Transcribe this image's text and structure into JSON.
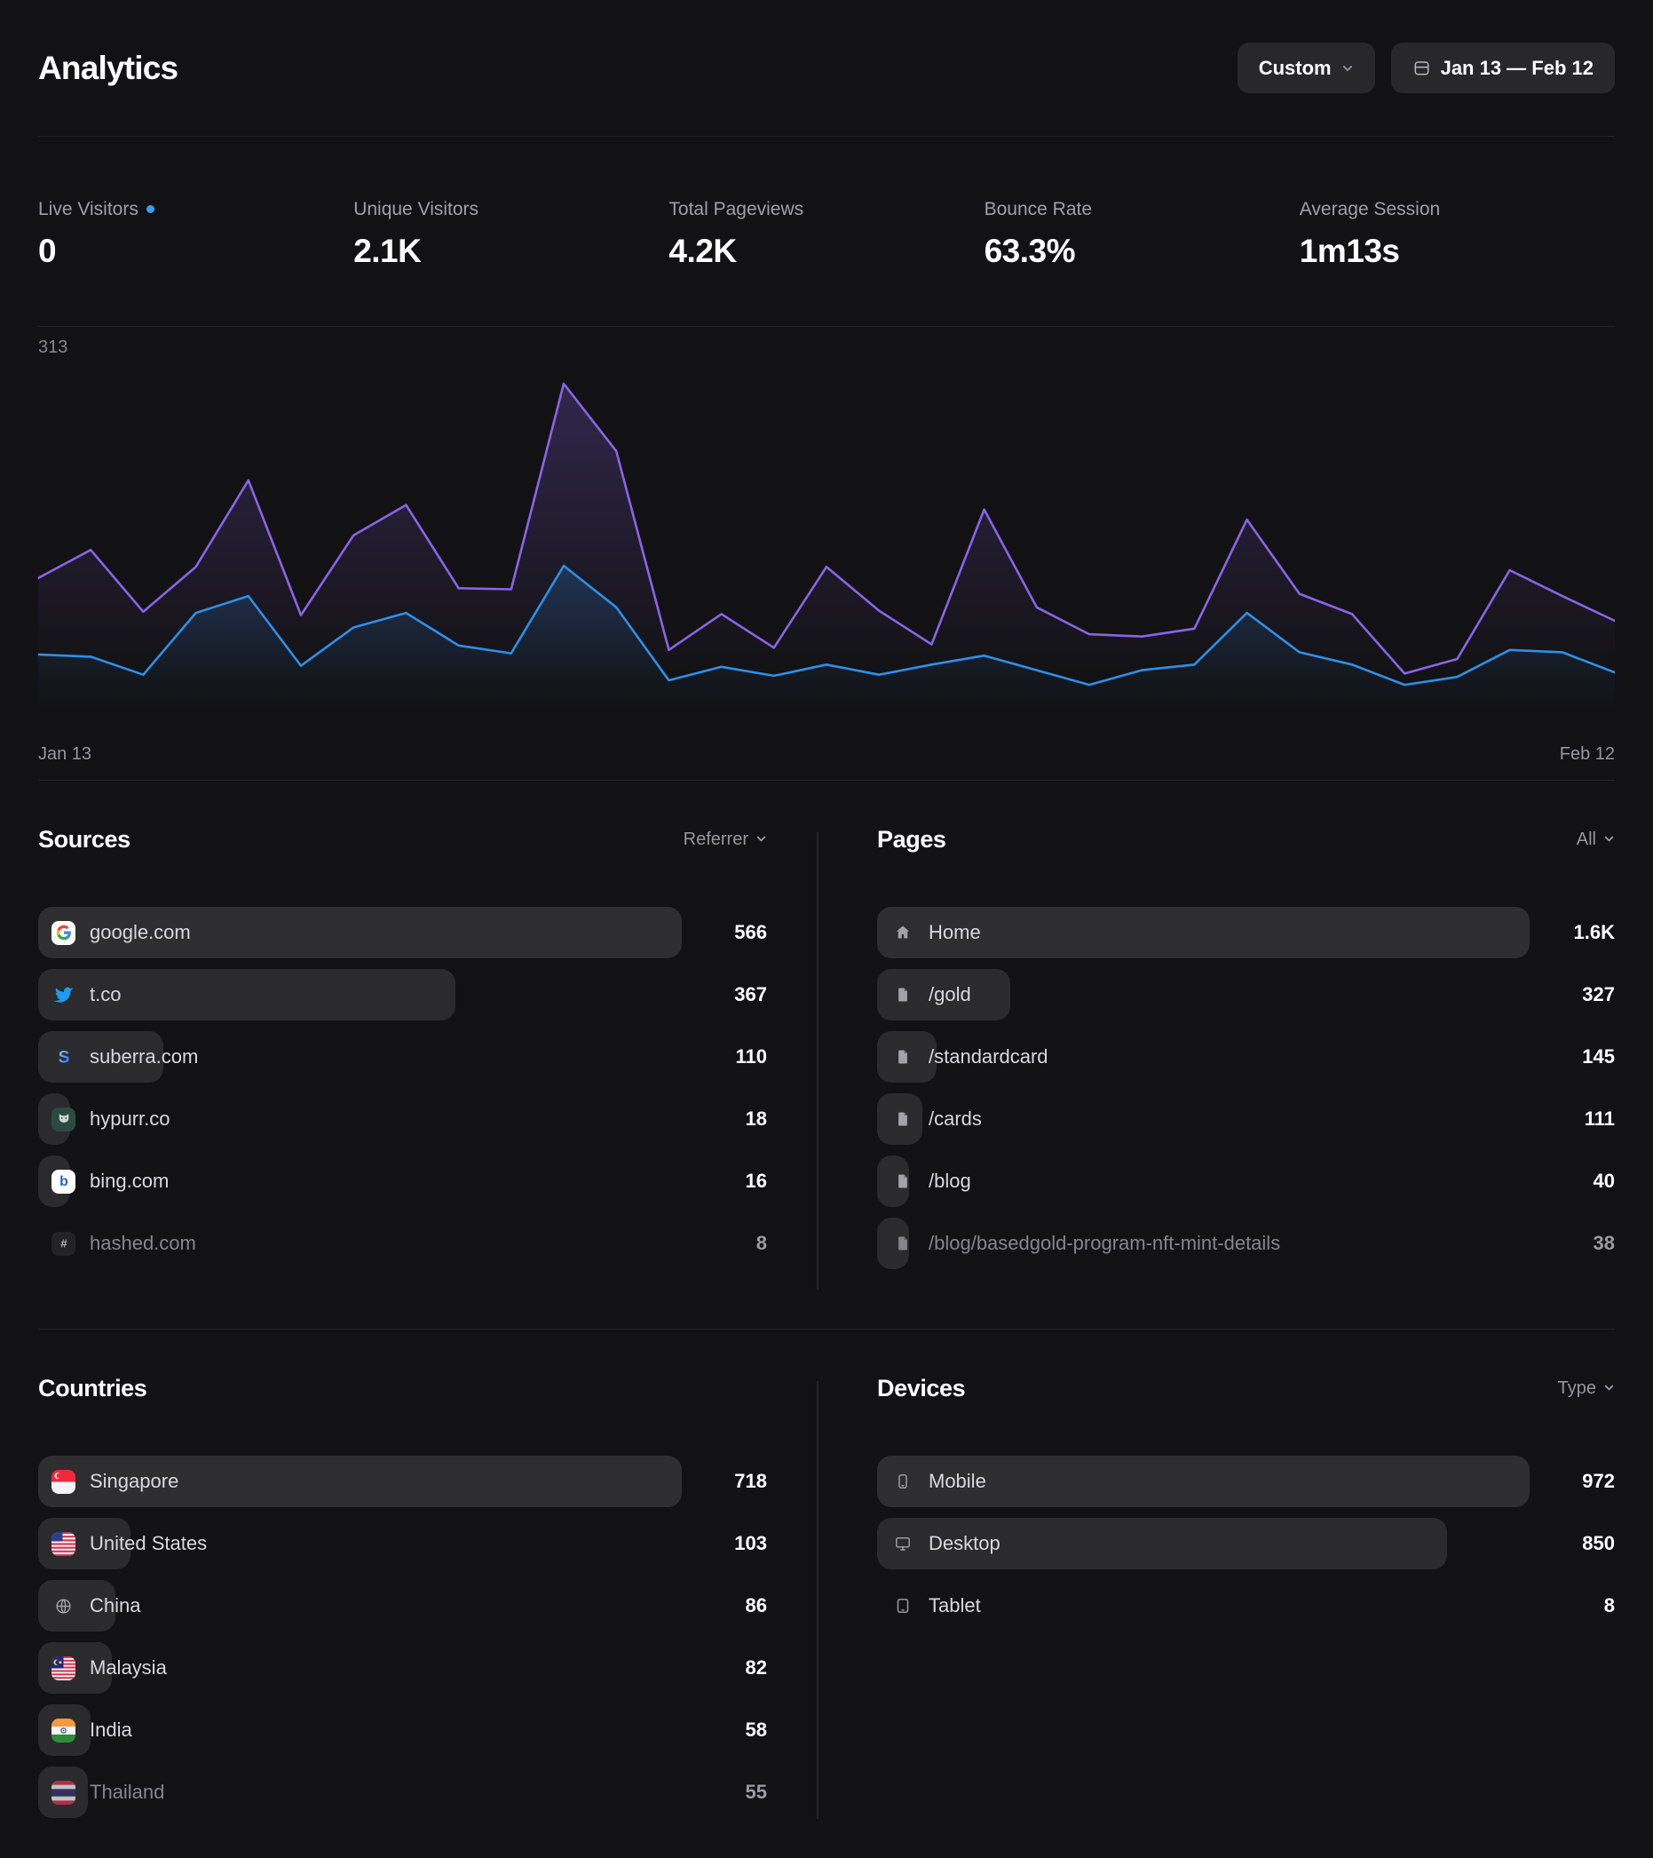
{
  "theme": {
    "background": "#121214",
    "bar": "#2b2b2e",
    "divider": "#232327",
    "accent_purple": "#8A63E8",
    "accent_blue": "#2E8FE8",
    "live_dot": "#3B9DF8"
  },
  "header": {
    "title": "Analytics",
    "range_preset": "Custom",
    "date_range": "Jan 13 — Feb 12"
  },
  "stats": [
    {
      "label": "Live Visitors",
      "value": "0",
      "live": true
    },
    {
      "label": "Unique Visitors",
      "value": "2.1K"
    },
    {
      "label": "Total Pageviews",
      "value": "4.2K"
    },
    {
      "label": "Bounce Rate",
      "value": "63.3%"
    },
    {
      "label": "Average Session",
      "value": "1m13s"
    }
  ],
  "chart_data": {
    "type": "area",
    "title": "Daily traffic, Jan 13 — Feb 12",
    "x_start_label": "Jan 13",
    "x_end_label": "Feb 12",
    "y_max_label": "313",
    "ylim": [
      0,
      313
    ],
    "grid": false,
    "legend": "none",
    "series": [
      {
        "name": "Pageviews",
        "color": "#8A63E8",
        "values": [
          140,
          165,
          110,
          150,
          227,
          107,
          178,
          205,
          131,
          130,
          313,
          253,
          76,
          108,
          78,
          150,
          111,
          81,
          201,
          114,
          90,
          88,
          95,
          192,
          126,
          108,
          55,
          68,
          147,
          124,
          102
        ]
      },
      {
        "name": "Visitors",
        "color": "#2E8FE8",
        "values": [
          72,
          70,
          54,
          109,
          124,
          62,
          96,
          109,
          80,
          73,
          151,
          114,
          49,
          61,
          53,
          63,
          54,
          63,
          71,
          58,
          45,
          58,
          63,
          109,
          74,
          63,
          45,
          52,
          76,
          74,
          56
        ]
      }
    ]
  },
  "sources": {
    "title": "Sources",
    "filter_label": "Referrer",
    "max": 566,
    "rows": [
      {
        "icon": "google-icon",
        "label": "google.com",
        "value": "566",
        "amount": 566
      },
      {
        "icon": "twitter-icon",
        "label": "t.co",
        "value": "367",
        "amount": 367
      },
      {
        "icon": "suberra-icon",
        "label": "suberra.com",
        "value": "110",
        "amount": 110
      },
      {
        "icon": "hypurr-icon",
        "label": "hypurr.co",
        "value": "18",
        "amount": 18
      },
      {
        "icon": "bing-icon",
        "label": "bing.com",
        "value": "16",
        "amount": 16
      },
      {
        "icon": "hash-icon",
        "label": "hashed.com",
        "value": "8",
        "amount": 8,
        "dim": true
      }
    ]
  },
  "pages": {
    "title": "Pages",
    "filter_label": "All",
    "max": 1600,
    "rows": [
      {
        "icon": "home-icon",
        "label": "Home",
        "value": "1.6K",
        "amount": 1600
      },
      {
        "icon": "page-icon",
        "label": "/gold",
        "value": "327",
        "amount": 327
      },
      {
        "icon": "page-icon",
        "label": "/standardcard",
        "value": "145",
        "amount": 145
      },
      {
        "icon": "page-icon",
        "label": "/cards",
        "value": "111",
        "amount": 111
      },
      {
        "icon": "page-icon",
        "label": "/blog",
        "value": "40",
        "amount": 40
      },
      {
        "icon": "page-icon",
        "label": "/blog/basedgold-program-nft-mint-details",
        "value": "38",
        "amount": 38,
        "dim": true
      }
    ]
  },
  "countries": {
    "title": "Countries",
    "max": 718,
    "rows": [
      {
        "icon": "flag-singapore-icon",
        "label": "Singapore",
        "value": "718",
        "amount": 718
      },
      {
        "icon": "flag-us-icon",
        "label": "United States",
        "value": "103",
        "amount": 103
      },
      {
        "icon": "globe-icon",
        "label": "China",
        "value": "86",
        "amount": 86
      },
      {
        "icon": "flag-malaysia-icon",
        "label": "Malaysia",
        "value": "82",
        "amount": 82
      },
      {
        "icon": "flag-india-icon",
        "label": "India",
        "value": "58",
        "amount": 58
      },
      {
        "icon": "flag-thailand-icon",
        "label": "Thailand",
        "value": "55",
        "amount": 55,
        "dim": true
      }
    ]
  },
  "devices": {
    "title": "Devices",
    "filter_label": "Type",
    "max": 972,
    "rows": [
      {
        "icon": "mobile-icon",
        "label": "Mobile",
        "value": "972",
        "amount": 972
      },
      {
        "icon": "desktop-icon",
        "label": "Desktop",
        "value": "850",
        "amount": 850
      },
      {
        "icon": "tablet-icon",
        "label": "Tablet",
        "value": "8",
        "amount": 8
      }
    ]
  }
}
